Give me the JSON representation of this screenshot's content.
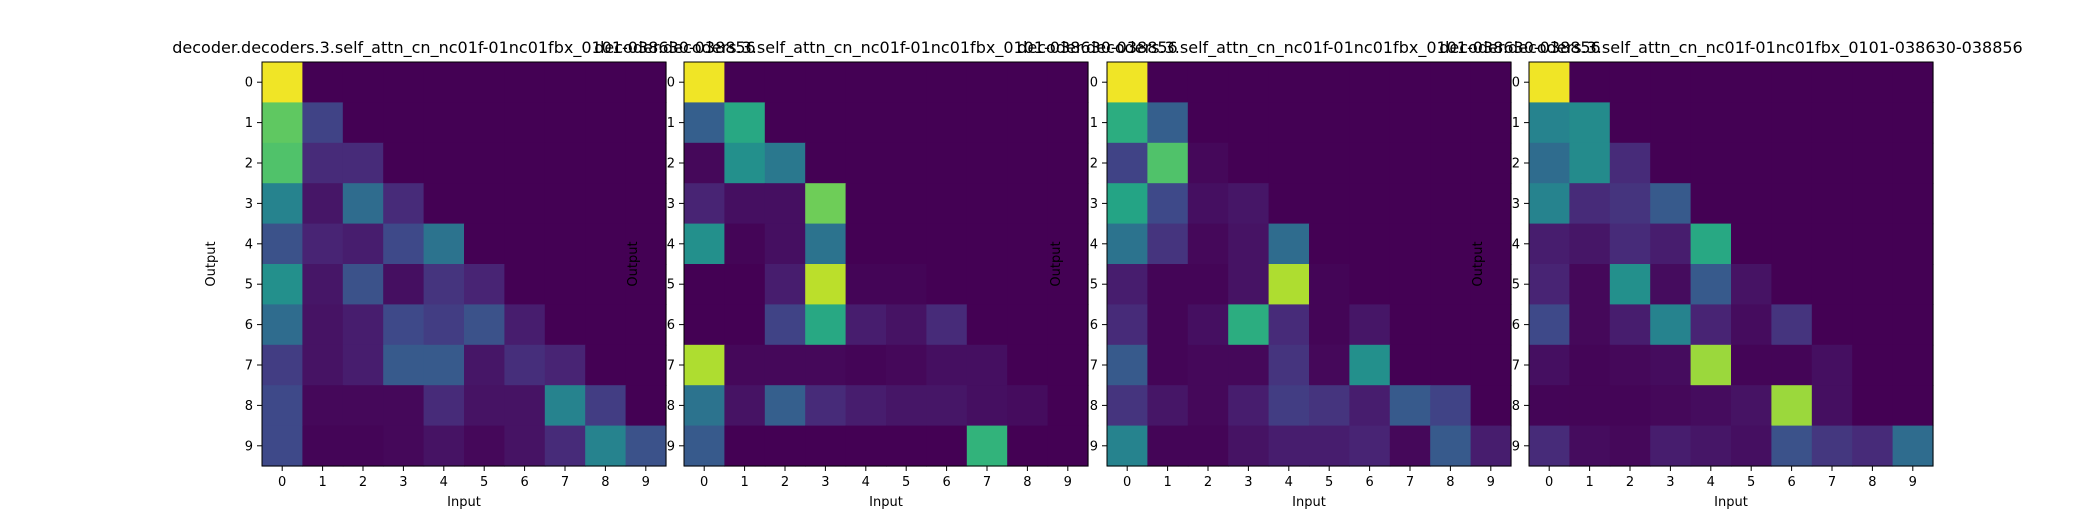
{
  "colormap": "viridis",
  "chart_data": [
    {
      "type": "heatmap",
      "title": "decoder.decoders.3.self_attn_cn_nc01f-01nc01fbx_0101-038630-038856",
      "xlabel": "Input",
      "ylabel": "Output",
      "x_ticks": [
        "0",
        "1",
        "2",
        "3",
        "4",
        "5",
        "6",
        "7",
        "8",
        "9"
      ],
      "y_ticks": [
        "0",
        "1",
        "2",
        "3",
        "4",
        "5",
        "6",
        "7",
        "8",
        "9"
      ],
      "values": [
        [
          0.98,
          0,
          0,
          0,
          0,
          0,
          0,
          0,
          0,
          0
        ],
        [
          0.75,
          0.2,
          0,
          0,
          0,
          0,
          0,
          0,
          0,
          0
        ],
        [
          0.72,
          0.12,
          0.12,
          0,
          0,
          0,
          0,
          0,
          0,
          0
        ],
        [
          0.45,
          0.06,
          0.35,
          0.12,
          0,
          0,
          0,
          0,
          0,
          0
        ],
        [
          0.25,
          0.1,
          0.08,
          0.22,
          0.38,
          0,
          0,
          0,
          0,
          0
        ],
        [
          0.5,
          0.06,
          0.25,
          0.04,
          0.15,
          0.1,
          0,
          0,
          0,
          0
        ],
        [
          0.35,
          0.05,
          0.08,
          0.22,
          0.18,
          0.25,
          0.08,
          0,
          0,
          0
        ],
        [
          0.18,
          0.05,
          0.08,
          0.28,
          0.28,
          0.06,
          0.13,
          0.1,
          0,
          0
        ],
        [
          0.22,
          0.02,
          0.02,
          0.02,
          0.12,
          0.05,
          0.05,
          0.45,
          0.18,
          0
        ],
        [
          0.22,
          0.01,
          0.01,
          0.02,
          0.05,
          0.02,
          0.05,
          0.12,
          0.45,
          0.25
        ]
      ]
    },
    {
      "type": "heatmap",
      "title": "decoder.decoders.3.self_attn_cn_nc01f-01nc01fbx_0101-038630-038856",
      "xlabel": "Input",
      "ylabel": "Output",
      "x_ticks": [
        "0",
        "1",
        "2",
        "3",
        "4",
        "5",
        "6",
        "7",
        "8",
        "9"
      ],
      "y_ticks": [
        "0",
        "1",
        "2",
        "3",
        "4",
        "5",
        "6",
        "7",
        "8",
        "9"
      ],
      "values": [
        [
          0.98,
          0,
          0,
          0,
          0,
          0,
          0,
          0,
          0,
          0
        ],
        [
          0.3,
          0.6,
          0,
          0,
          0,
          0,
          0,
          0,
          0,
          0
        ],
        [
          0.02,
          0.5,
          0.4,
          0,
          0,
          0,
          0,
          0,
          0,
          0
        ],
        [
          0.1,
          0.04,
          0.04,
          0.78,
          0,
          0,
          0,
          0,
          0,
          0
        ],
        [
          0.5,
          0.01,
          0.04,
          0.38,
          0,
          0,
          0,
          0,
          0,
          0
        ],
        [
          0,
          0,
          0.08,
          0.9,
          0.01,
          0.01,
          0,
          0,
          0,
          0
        ],
        [
          0,
          0,
          0.2,
          0.6,
          0.08,
          0.05,
          0.12,
          0,
          0,
          0
        ],
        [
          0.88,
          0.02,
          0.02,
          0.02,
          0.01,
          0.02,
          0.04,
          0.04,
          0,
          0
        ],
        [
          0.38,
          0.05,
          0.3,
          0.12,
          0.08,
          0.06,
          0.06,
          0.04,
          0.03,
          0
        ],
        [
          0.28,
          0,
          0,
          0,
          0,
          0,
          0,
          0.65,
          0,
          0
        ]
      ]
    },
    {
      "type": "heatmap",
      "title": "decoder.decoders.3.self_attn_cn_nc01f-01nc01fbx_0101-038630-038856",
      "xlabel": "Input",
      "ylabel": "Output",
      "x_ticks": [
        "0",
        "1",
        "2",
        "3",
        "4",
        "5",
        "6",
        "7",
        "8",
        "9"
      ],
      "y_ticks": [
        "0",
        "1",
        "2",
        "3",
        "4",
        "5",
        "6",
        "7",
        "8",
        "9"
      ],
      "values": [
        [
          0.98,
          0,
          0,
          0,
          0,
          0,
          0,
          0,
          0,
          0
        ],
        [
          0.62,
          0.3,
          0,
          0,
          0,
          0,
          0,
          0,
          0,
          0
        ],
        [
          0.2,
          0.72,
          0.02,
          0,
          0,
          0,
          0,
          0,
          0,
          0
        ],
        [
          0.58,
          0.22,
          0.04,
          0.06,
          0,
          0,
          0,
          0,
          0,
          0
        ],
        [
          0.38,
          0.15,
          0.02,
          0.05,
          0.35,
          0,
          0,
          0,
          0,
          0
        ],
        [
          0.08,
          0.01,
          0.01,
          0.05,
          0.88,
          0.01,
          0,
          0,
          0,
          0
        ],
        [
          0.12,
          0.01,
          0.04,
          0.62,
          0.12,
          0.01,
          0.06,
          0,
          0,
          0
        ],
        [
          0.28,
          0.01,
          0.02,
          0.02,
          0.15,
          0.02,
          0.5,
          0,
          0,
          0
        ],
        [
          0.15,
          0.06,
          0.02,
          0.08,
          0.18,
          0.15,
          0.08,
          0.28,
          0.2,
          0
        ],
        [
          0.45,
          0.01,
          0.01,
          0.05,
          0.08,
          0.08,
          0.1,
          0.02,
          0.28,
          0.08
        ]
      ]
    },
    {
      "type": "heatmap",
      "title": "decoder.decoders.3.self_attn_cn_nc01f-01nc01fbx_0101-038630-038856",
      "xlabel": "Input",
      "ylabel": "Output",
      "x_ticks": [
        "0",
        "1",
        "2",
        "3",
        "4",
        "5",
        "6",
        "7",
        "8",
        "9"
      ],
      "y_ticks": [
        "0",
        "1",
        "2",
        "3",
        "4",
        "5",
        "6",
        "7",
        "8",
        "9"
      ],
      "values": [
        [
          0.98,
          0,
          0,
          0,
          0,
          0,
          0,
          0,
          0,
          0
        ],
        [
          0.45,
          0.48,
          0,
          0,
          0,
          0,
          0,
          0,
          0,
          0
        ],
        [
          0.35,
          0.48,
          0.12,
          0,
          0,
          0,
          0,
          0,
          0,
          0
        ],
        [
          0.45,
          0.12,
          0.15,
          0.28,
          0,
          0,
          0,
          0,
          0,
          0
        ],
        [
          0.08,
          0.06,
          0.12,
          0.08,
          0.6,
          0,
          0,
          0,
          0,
          0
        ],
        [
          0.1,
          0.02,
          0.5,
          0.03,
          0.28,
          0.05,
          0,
          0,
          0,
          0
        ],
        [
          0.22,
          0.02,
          0.08,
          0.45,
          0.1,
          0.03,
          0.15,
          0,
          0,
          0
        ],
        [
          0.04,
          0.01,
          0.02,
          0.03,
          0.85,
          0.01,
          0.01,
          0.04,
          0,
          0
        ],
        [
          0.01,
          0.01,
          0.01,
          0.02,
          0.03,
          0.05,
          0.85,
          0.04,
          0,
          0
        ],
        [
          0.12,
          0.03,
          0.02,
          0.08,
          0.06,
          0.04,
          0.25,
          0.16,
          0.12,
          0.35
        ]
      ]
    }
  ]
}
